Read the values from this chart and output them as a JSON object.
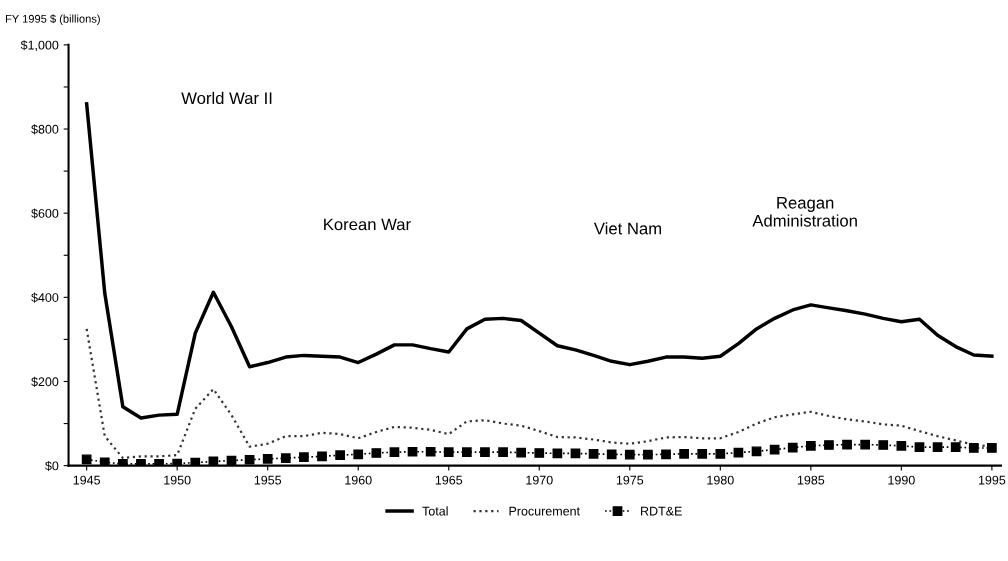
{
  "chart_data": {
    "type": "line",
    "ylabel": "FY 1995 $ (billions)",
    "x": [
      1945,
      1946,
      1947,
      1948,
      1949,
      1950,
      1951,
      1952,
      1953,
      1954,
      1955,
      1956,
      1957,
      1958,
      1959,
      1960,
      1961,
      1962,
      1963,
      1964,
      1965,
      1966,
      1967,
      1968,
      1969,
      1970,
      1971,
      1972,
      1973,
      1974,
      1975,
      1976,
      1977,
      1978,
      1979,
      1980,
      1981,
      1982,
      1983,
      1984,
      1985,
      1986,
      1987,
      1988,
      1989,
      1990,
      1991,
      1992,
      1993,
      1994,
      1995
    ],
    "series": [
      {
        "name": "Total",
        "color": "#000000",
        "line_style": "solid",
        "marker": "none",
        "values": [
          860,
          410,
          140,
          113,
          120,
          122,
          315,
          412,
          330,
          235,
          245,
          258,
          262,
          260,
          258,
          245,
          265,
          287,
          287,
          278,
          270,
          325,
          348,
          350,
          345,
          315,
          285,
          275,
          262,
          248,
          240,
          248,
          258,
          258,
          255,
          260,
          290,
          325,
          350,
          370,
          382,
          375,
          368,
          360,
          350,
          342,
          348,
          310,
          283,
          263,
          260
        ]
      },
      {
        "name": "Procurement",
        "color": "#333333",
        "line_style": "dotted",
        "marker": "none",
        "values": [
          325,
          70,
          18,
          22,
          22,
          25,
          135,
          182,
          120,
          45,
          52,
          70,
          70,
          78,
          75,
          65,
          80,
          92,
          90,
          85,
          75,
          105,
          108,
          100,
          95,
          82,
          68,
          67,
          62,
          55,
          52,
          58,
          67,
          68,
          65,
          65,
          80,
          100,
          115,
          122,
          128,
          118,
          110,
          105,
          98,
          95,
          82,
          70,
          60,
          50,
          45
        ]
      },
      {
        "name": "RDT&E",
        "color": "#000000",
        "line_style": "dotted",
        "marker": "square",
        "values": [
          15,
          8,
          4,
          4,
          4,
          5,
          7,
          10,
          12,
          14,
          16,
          18,
          20,
          22,
          25,
          27,
          30,
          32,
          33,
          33,
          32,
          32,
          32,
          32,
          31,
          30,
          29,
          29,
          28,
          27,
          26,
          26,
          27,
          28,
          28,
          28,
          31,
          34,
          38,
          43,
          47,
          49,
          50,
          50,
          49,
          47,
          44,
          44,
          44,
          42,
          42
        ]
      }
    ],
    "xlim": [
      1944,
      1995.5
    ],
    "xticks": [
      1945,
      1950,
      1955,
      1960,
      1965,
      1970,
      1975,
      1980,
      1985,
      1990,
      1995
    ],
    "ylim": [
      0,
      1000
    ],
    "yticks": [
      {
        "value": 0,
        "label": "$0"
      },
      {
        "value": 100,
        "label": null
      },
      {
        "value": 200,
        "label": "$200"
      },
      {
        "value": 300,
        "label": null
      },
      {
        "value": 400,
        "label": "$400"
      },
      {
        "value": 500,
        "label": null
      },
      {
        "value": 600,
        "label": "$600"
      },
      {
        "value": 700,
        "label": null
      },
      {
        "value": 800,
        "label": "$800"
      },
      {
        "value": 900,
        "label": null
      },
      {
        "value": 1000,
        "label": "$1,000"
      }
    ],
    "annotations": [
      "World War II",
      "Korean War",
      "Viet Nam",
      "Reagan\nAdministration"
    ],
    "grid": false,
    "legend": "bottom"
  }
}
